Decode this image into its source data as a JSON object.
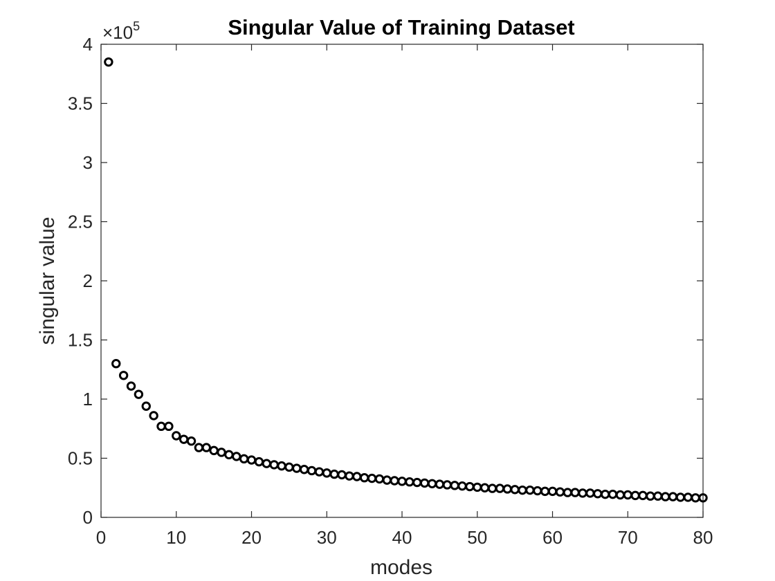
{
  "chart_data": {
    "type": "scatter",
    "title": "Singular Value of Training Dataset",
    "xlabel": "modes",
    "ylabel": "singular value",
    "xlim": [
      0,
      80
    ],
    "ylim": [
      0,
      400000
    ],
    "x_ticks": [
      0,
      10,
      20,
      30,
      40,
      50,
      60,
      70,
      80
    ],
    "y_ticks": [
      0,
      50000,
      100000,
      150000,
      200000,
      250000,
      300000,
      350000,
      400000
    ],
    "x_tick_labels": [
      "0",
      "10",
      "20",
      "30",
      "40",
      "50",
      "60",
      "70",
      "80"
    ],
    "y_tick_labels": [
      "0",
      "0.5",
      "1",
      "1.5",
      "2",
      "2.5",
      "3",
      "3.5",
      "4"
    ],
    "y_exponent_base": "×10",
    "y_exponent_power": "5",
    "marker": "circle",
    "marker_color": "#000000",
    "grid": false,
    "legend": false,
    "x": [
      1,
      2,
      3,
      4,
      5,
      6,
      7,
      8,
      9,
      10,
      11,
      12,
      13,
      14,
      15,
      16,
      17,
      18,
      19,
      20,
      21,
      22,
      23,
      24,
      25,
      26,
      27,
      28,
      29,
      30,
      31,
      32,
      33,
      34,
      35,
      36,
      37,
      38,
      39,
      40,
      41,
      42,
      43,
      44,
      45,
      46,
      47,
      48,
      49,
      50,
      51,
      52,
      53,
      54,
      55,
      56,
      57,
      58,
      59,
      60,
      61,
      62,
      63,
      64,
      65,
      66,
      67,
      68,
      69,
      70,
      71,
      72,
      73,
      74,
      75,
      76,
      77,
      78,
      79,
      80
    ],
    "values": [
      385000,
      130000,
      120000,
      111000,
      104000,
      94000,
      86000,
      77000,
      77000,
      69000,
      66000,
      64500,
      59000,
      59000,
      56500,
      55000,
      53000,
      51500,
      49500,
      48500,
      47000,
      45500,
      44500,
      43500,
      42500,
      41500,
      40500,
      39500,
      38500,
      37500,
      36500,
      36000,
      35000,
      34500,
      33500,
      33000,
      32500,
      31500,
      31000,
      30500,
      30000,
      29500,
      29000,
      28500,
      28000,
      27500,
      27000,
      26500,
      26000,
      25500,
      25000,
      24500,
      24500,
      24000,
      23500,
      23000,
      23000,
      22500,
      22000,
      22000,
      21500,
      21000,
      21000,
      20500,
      20500,
      20000,
      19500,
      19500,
      19000,
      19000,
      18500,
      18500,
      18000,
      18000,
      17500,
      17500,
      17000,
      17000,
      16500,
      16500
    ]
  }
}
